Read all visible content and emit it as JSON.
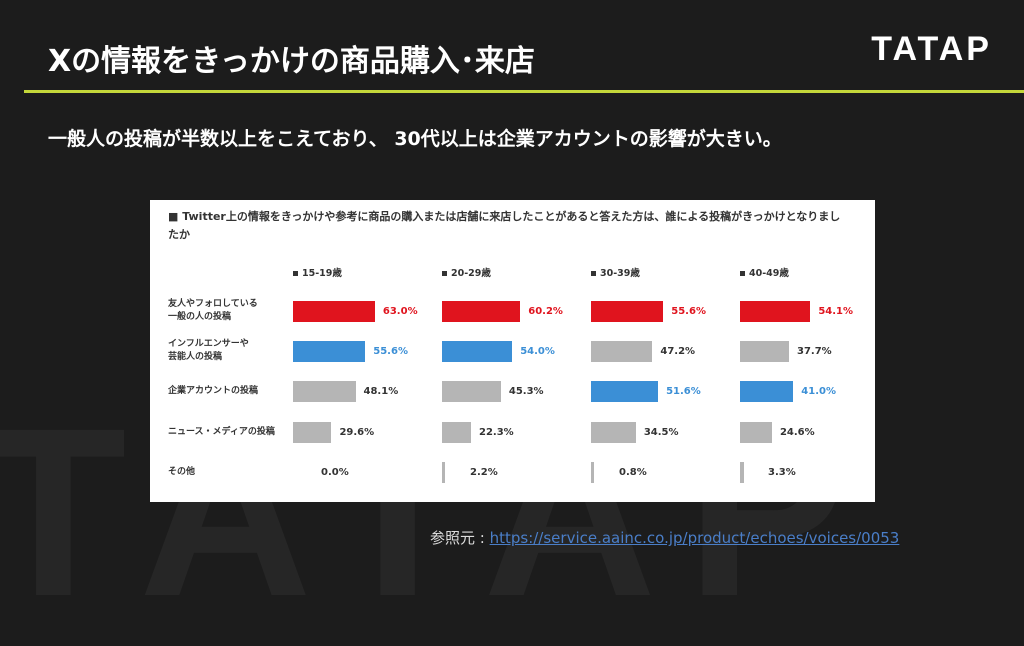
{
  "header": {
    "title": "Xの情報をきっかけの商品購入･来店",
    "logo": "TATAP",
    "watermark": "TATAP"
  },
  "subtitle": "一般人の投稿が半数以上をこえており、 30代以上は企業アカウントの影響が大きい。",
  "chart_data": {
    "type": "bar",
    "title": "■ Twitter上の情報をきっかけや参考に商品の購入または店舗に来店したことがあると答えた方は、誰による投稿がきっかけとなりましたか",
    "categories": [
      "友人やフォロしている一般の人の投稿",
      "インフルエンサーや芸能人の投稿",
      "企業アカウントの投稿",
      "ニュース・メディアの投稿",
      "その他"
    ],
    "category_lines": [
      [
        "友人やフォロしている",
        "一般の人の投稿"
      ],
      [
        "インフルエンサーや",
        "芸能人の投稿"
      ],
      [
        "企業アカウントの投稿"
      ],
      [
        "ニュース・メディアの投稿"
      ],
      [
        "その他"
      ]
    ],
    "unit": "%",
    "xlim": [
      0,
      100
    ],
    "series": [
      {
        "name": "15-19歳",
        "values": [
          63.0,
          55.6,
          48.1,
          29.6,
          0.0
        ],
        "colors": [
          "#e0141e",
          "#3b8fd6",
          "#b5b5b5",
          "#b5b5b5",
          "#b5b5b5"
        ]
      },
      {
        "name": "20-29歳",
        "values": [
          60.2,
          54.0,
          45.3,
          22.3,
          2.2
        ],
        "colors": [
          "#e0141e",
          "#3b8fd6",
          "#b5b5b5",
          "#b5b5b5",
          "#b5b5b5"
        ]
      },
      {
        "name": "30-39歳",
        "values": [
          55.6,
          47.2,
          51.6,
          34.5,
          0.8
        ],
        "colors": [
          "#e0141e",
          "#b5b5b5",
          "#3b8fd6",
          "#b5b5b5",
          "#b5b5b5"
        ]
      },
      {
        "name": "40-49歳",
        "values": [
          54.1,
          37.7,
          41.0,
          24.6,
          3.3
        ],
        "colors": [
          "#e0141e",
          "#b5b5b5",
          "#3b8fd6",
          "#b5b5b5",
          "#b5b5b5"
        ]
      }
    ]
  },
  "reference": {
    "label": "参照元 : ",
    "url": "https://service.aainc.co.jp/product/echoes/voices/0053"
  },
  "colors": {
    "accent_line": "#c4d73a",
    "red": "#e0141e",
    "blue": "#3b8fd6",
    "gray": "#b5b5b5",
    "background": "#1c1c1c"
  }
}
